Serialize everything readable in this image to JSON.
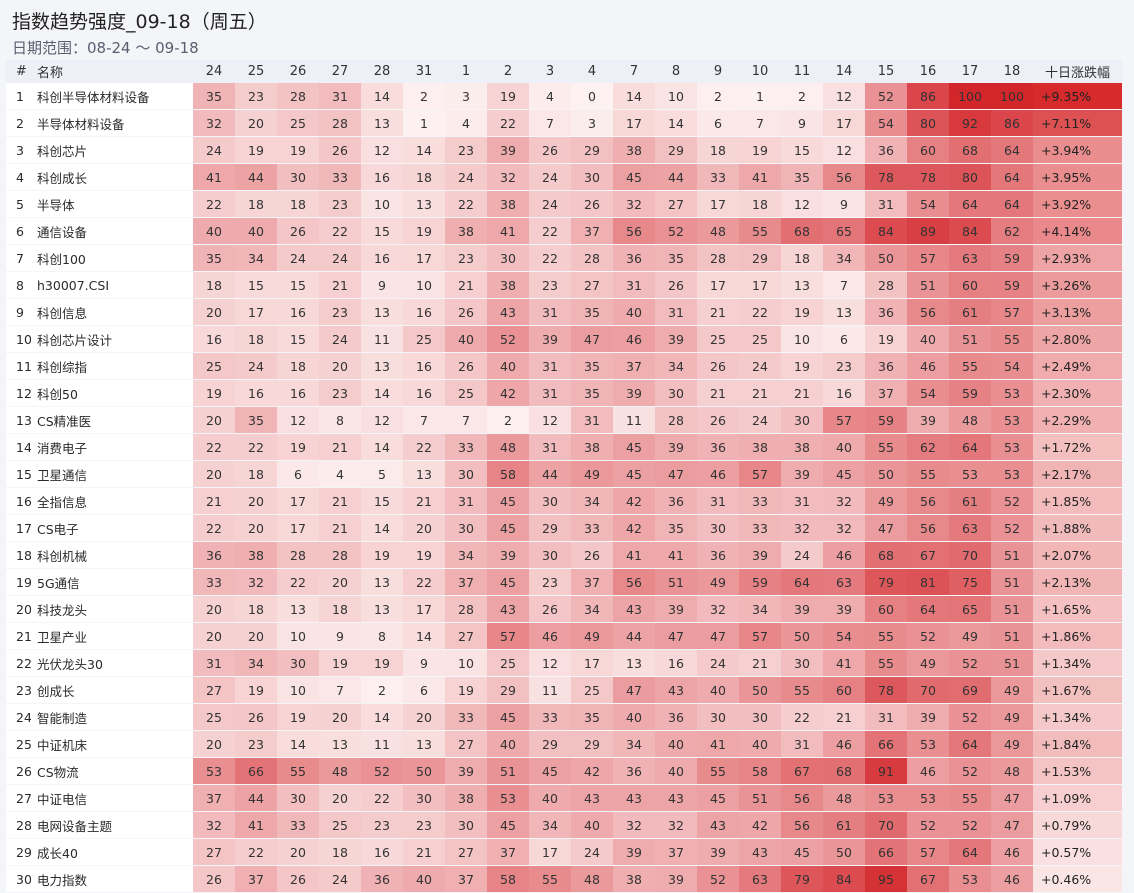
{
  "header": {
    "title": "指数趋势强度_09-18（周五）",
    "subtitle": "日期范围：08-24 ～ 09-18"
  },
  "chart_data": {
    "type": "heatmap",
    "columns": {
      "index": "#",
      "name": "名称",
      "change": "十日涨跌幅"
    },
    "dates": [
      "24",
      "25",
      "26",
      "27",
      "28",
      "31",
      "1",
      "2",
      "3",
      "4",
      "7",
      "8",
      "9",
      "10",
      "11",
      "14",
      "15",
      "16",
      "17",
      "18"
    ],
    "rows": [
      {
        "i": "1",
        "name": "科创半导体材料设备",
        "v": [
          35,
          23,
          28,
          31,
          14,
          2,
          3,
          19,
          4,
          0,
          14,
          10,
          2,
          1,
          2,
          12,
          52,
          86,
          100,
          100
        ],
        "chg": "+9.35%"
      },
      {
        "i": "2",
        "name": "半导体材料设备",
        "v": [
          32,
          20,
          25,
          28,
          13,
          1,
          4,
          22,
          7,
          3,
          17,
          14,
          6,
          7,
          9,
          17,
          54,
          80,
          92,
          86
        ],
        "chg": "+7.11%"
      },
      {
        "i": "3",
        "name": "科创芯片",
        "v": [
          24,
          19,
          19,
          26,
          12,
          14,
          23,
          39,
          26,
          29,
          38,
          29,
          18,
          19,
          15,
          12,
          36,
          60,
          68,
          64
        ],
        "chg": "+3.94%"
      },
      {
        "i": "4",
        "name": "科创成长",
        "v": [
          41,
          44,
          30,
          33,
          16,
          18,
          24,
          32,
          24,
          30,
          45,
          44,
          33,
          41,
          35,
          56,
          78,
          78,
          80,
          64
        ],
        "chg": "+3.95%"
      },
      {
        "i": "5",
        "name": "半导体",
        "v": [
          22,
          18,
          18,
          23,
          10,
          13,
          22,
          38,
          24,
          26,
          32,
          27,
          17,
          18,
          12,
          9,
          31,
          54,
          64,
          64
        ],
        "chg": "+3.92%"
      },
      {
        "i": "6",
        "name": "通信设备",
        "v": [
          40,
          40,
          26,
          22,
          15,
          19,
          38,
          41,
          22,
          37,
          56,
          52,
          48,
          55,
          68,
          65,
          84,
          89,
          84,
          62
        ],
        "chg": "+4.14%"
      },
      {
        "i": "7",
        "name": "科创100",
        "v": [
          35,
          34,
          24,
          24,
          16,
          17,
          23,
          30,
          22,
          28,
          36,
          35,
          28,
          29,
          18,
          34,
          50,
          57,
          63,
          59
        ],
        "chg": "+2.93%"
      },
      {
        "i": "8",
        "name": "h30007.CSI",
        "v": [
          18,
          15,
          15,
          21,
          9,
          10,
          21,
          38,
          23,
          27,
          31,
          26,
          17,
          17,
          13,
          7,
          28,
          51,
          60,
          59
        ],
        "chg": "+3.26%"
      },
      {
        "i": "9",
        "name": "科创信息",
        "v": [
          20,
          17,
          16,
          23,
          13,
          16,
          26,
          43,
          31,
          35,
          40,
          31,
          21,
          22,
          19,
          13,
          36,
          56,
          61,
          57
        ],
        "chg": "+3.13%"
      },
      {
        "i": "10",
        "name": "科创芯片设计",
        "v": [
          16,
          18,
          15,
          24,
          11,
          25,
          40,
          52,
          39,
          47,
          46,
          39,
          25,
          25,
          10,
          6,
          19,
          40,
          51,
          55
        ],
        "chg": "+2.80%"
      },
      {
        "i": "11",
        "name": "科创综指",
        "v": [
          25,
          24,
          18,
          20,
          13,
          16,
          26,
          40,
          31,
          35,
          37,
          34,
          26,
          24,
          19,
          23,
          36,
          46,
          55,
          54
        ],
        "chg": "+2.49%"
      },
      {
        "i": "12",
        "name": "科创50",
        "v": [
          19,
          16,
          16,
          23,
          14,
          16,
          25,
          42,
          31,
          35,
          39,
          30,
          21,
          21,
          21,
          16,
          37,
          54,
          59,
          53
        ],
        "chg": "+2.30%"
      },
      {
        "i": "13",
        "name": "CS精准医",
        "v": [
          20,
          35,
          12,
          8,
          12,
          7,
          7,
          2,
          12,
          31,
          11,
          28,
          26,
          24,
          30,
          57,
          59,
          39,
          48,
          53
        ],
        "chg": "+2.29%"
      },
      {
        "i": "14",
        "name": "消费电子",
        "v": [
          22,
          22,
          19,
          21,
          14,
          22,
          33,
          48,
          31,
          38,
          45,
          39,
          36,
          38,
          38,
          40,
          55,
          62,
          64,
          53
        ],
        "chg": "+1.72%"
      },
      {
        "i": "15",
        "name": "卫星通信",
        "v": [
          20,
          18,
          6,
          4,
          5,
          13,
          30,
          58,
          44,
          49,
          45,
          47,
          46,
          57,
          39,
          45,
          50,
          55,
          53,
          53
        ],
        "chg": "+2.17%"
      },
      {
        "i": "16",
        "name": "全指信息",
        "v": [
          21,
          20,
          17,
          21,
          15,
          21,
          31,
          45,
          30,
          34,
          42,
          36,
          31,
          33,
          31,
          32,
          49,
          56,
          61,
          52
        ],
        "chg": "+1.85%"
      },
      {
        "i": "17",
        "name": "CS电子",
        "v": [
          22,
          20,
          17,
          21,
          14,
          20,
          30,
          45,
          29,
          33,
          42,
          35,
          30,
          33,
          32,
          32,
          47,
          56,
          63,
          52
        ],
        "chg": "+1.88%"
      },
      {
        "i": "18",
        "name": "科创机械",
        "v": [
          36,
          38,
          28,
          28,
          19,
          19,
          34,
          39,
          30,
          26,
          41,
          41,
          36,
          39,
          24,
          46,
          68,
          67,
          70,
          51
        ],
        "chg": "+2.07%"
      },
      {
        "i": "19",
        "name": "5G通信",
        "v": [
          33,
          32,
          22,
          20,
          13,
          22,
          37,
          45,
          23,
          37,
          56,
          51,
          49,
          59,
          64,
          63,
          79,
          81,
          75,
          51
        ],
        "chg": "+2.13%"
      },
      {
        "i": "20",
        "name": "科技龙头",
        "v": [
          20,
          18,
          13,
          18,
          13,
          17,
          28,
          43,
          26,
          34,
          43,
          39,
          32,
          34,
          39,
          39,
          60,
          64,
          65,
          51
        ],
        "chg": "+1.65%"
      },
      {
        "i": "21",
        "name": "卫星产业",
        "v": [
          20,
          20,
          10,
          9,
          8,
          14,
          27,
          57,
          46,
          49,
          44,
          47,
          47,
          57,
          50,
          54,
          55,
          52,
          49,
          51
        ],
        "chg": "+1.86%"
      },
      {
        "i": "22",
        "name": "光伏龙头30",
        "v": [
          31,
          34,
          30,
          19,
          19,
          9,
          10,
          25,
          12,
          17,
          13,
          16,
          24,
          21,
          30,
          41,
          55,
          49,
          52,
          51
        ],
        "chg": "+1.34%"
      },
      {
        "i": "23",
        "name": "创成长",
        "v": [
          27,
          19,
          10,
          7,
          2,
          6,
          19,
          29,
          11,
          25,
          47,
          43,
          40,
          50,
          55,
          60,
          78,
          70,
          69,
          49
        ],
        "chg": "+1.67%"
      },
      {
        "i": "24",
        "name": "智能制造",
        "v": [
          25,
          26,
          19,
          20,
          14,
          20,
          33,
          45,
          33,
          35,
          40,
          36,
          30,
          30,
          22,
          21,
          31,
          39,
          52,
          49
        ],
        "chg": "+1.34%"
      },
      {
        "i": "25",
        "name": "中证机床",
        "v": [
          20,
          23,
          14,
          13,
          11,
          13,
          27,
          40,
          29,
          29,
          34,
          40,
          41,
          40,
          31,
          46,
          66,
          53,
          64,
          49
        ],
        "chg": "+1.84%"
      },
      {
        "i": "26",
        "name": "CS物流",
        "v": [
          53,
          66,
          55,
          48,
          52,
          50,
          39,
          51,
          45,
          42,
          36,
          40,
          55,
          58,
          67,
          68,
          91,
          46,
          52,
          48
        ],
        "chg": "+1.53%"
      },
      {
        "i": "27",
        "name": "中证电信",
        "v": [
          37,
          44,
          30,
          20,
          22,
          30,
          38,
          53,
          40,
          43,
          43,
          43,
          45,
          51,
          56,
          48,
          53,
          53,
          55,
          47
        ],
        "chg": "+1.09%"
      },
      {
        "i": "28",
        "name": "电网设备主题",
        "v": [
          32,
          41,
          33,
          25,
          23,
          23,
          30,
          45,
          34,
          40,
          32,
          32,
          43,
          42,
          56,
          61,
          70,
          52,
          52,
          47
        ],
        "chg": "+0.79%"
      },
      {
        "i": "29",
        "name": "成长40",
        "v": [
          27,
          22,
          20,
          18,
          16,
          21,
          27,
          37,
          17,
          24,
          39,
          37,
          39,
          43,
          45,
          50,
          66,
          57,
          64,
          46
        ],
        "chg": "+0.57%"
      },
      {
        "i": "30",
        "name": "电力指数",
        "v": [
          26,
          37,
          26,
          24,
          36,
          40,
          37,
          58,
          55,
          48,
          38,
          39,
          52,
          63,
          79,
          84,
          95,
          67,
          53,
          46
        ],
        "chg": "+0.46%"
      }
    ],
    "colors": {
      "low": "#fdf1f1",
      "high": "#d3262b",
      "change_low": "#fbe6e6",
      "change_high": "#d62a2d"
    }
  }
}
